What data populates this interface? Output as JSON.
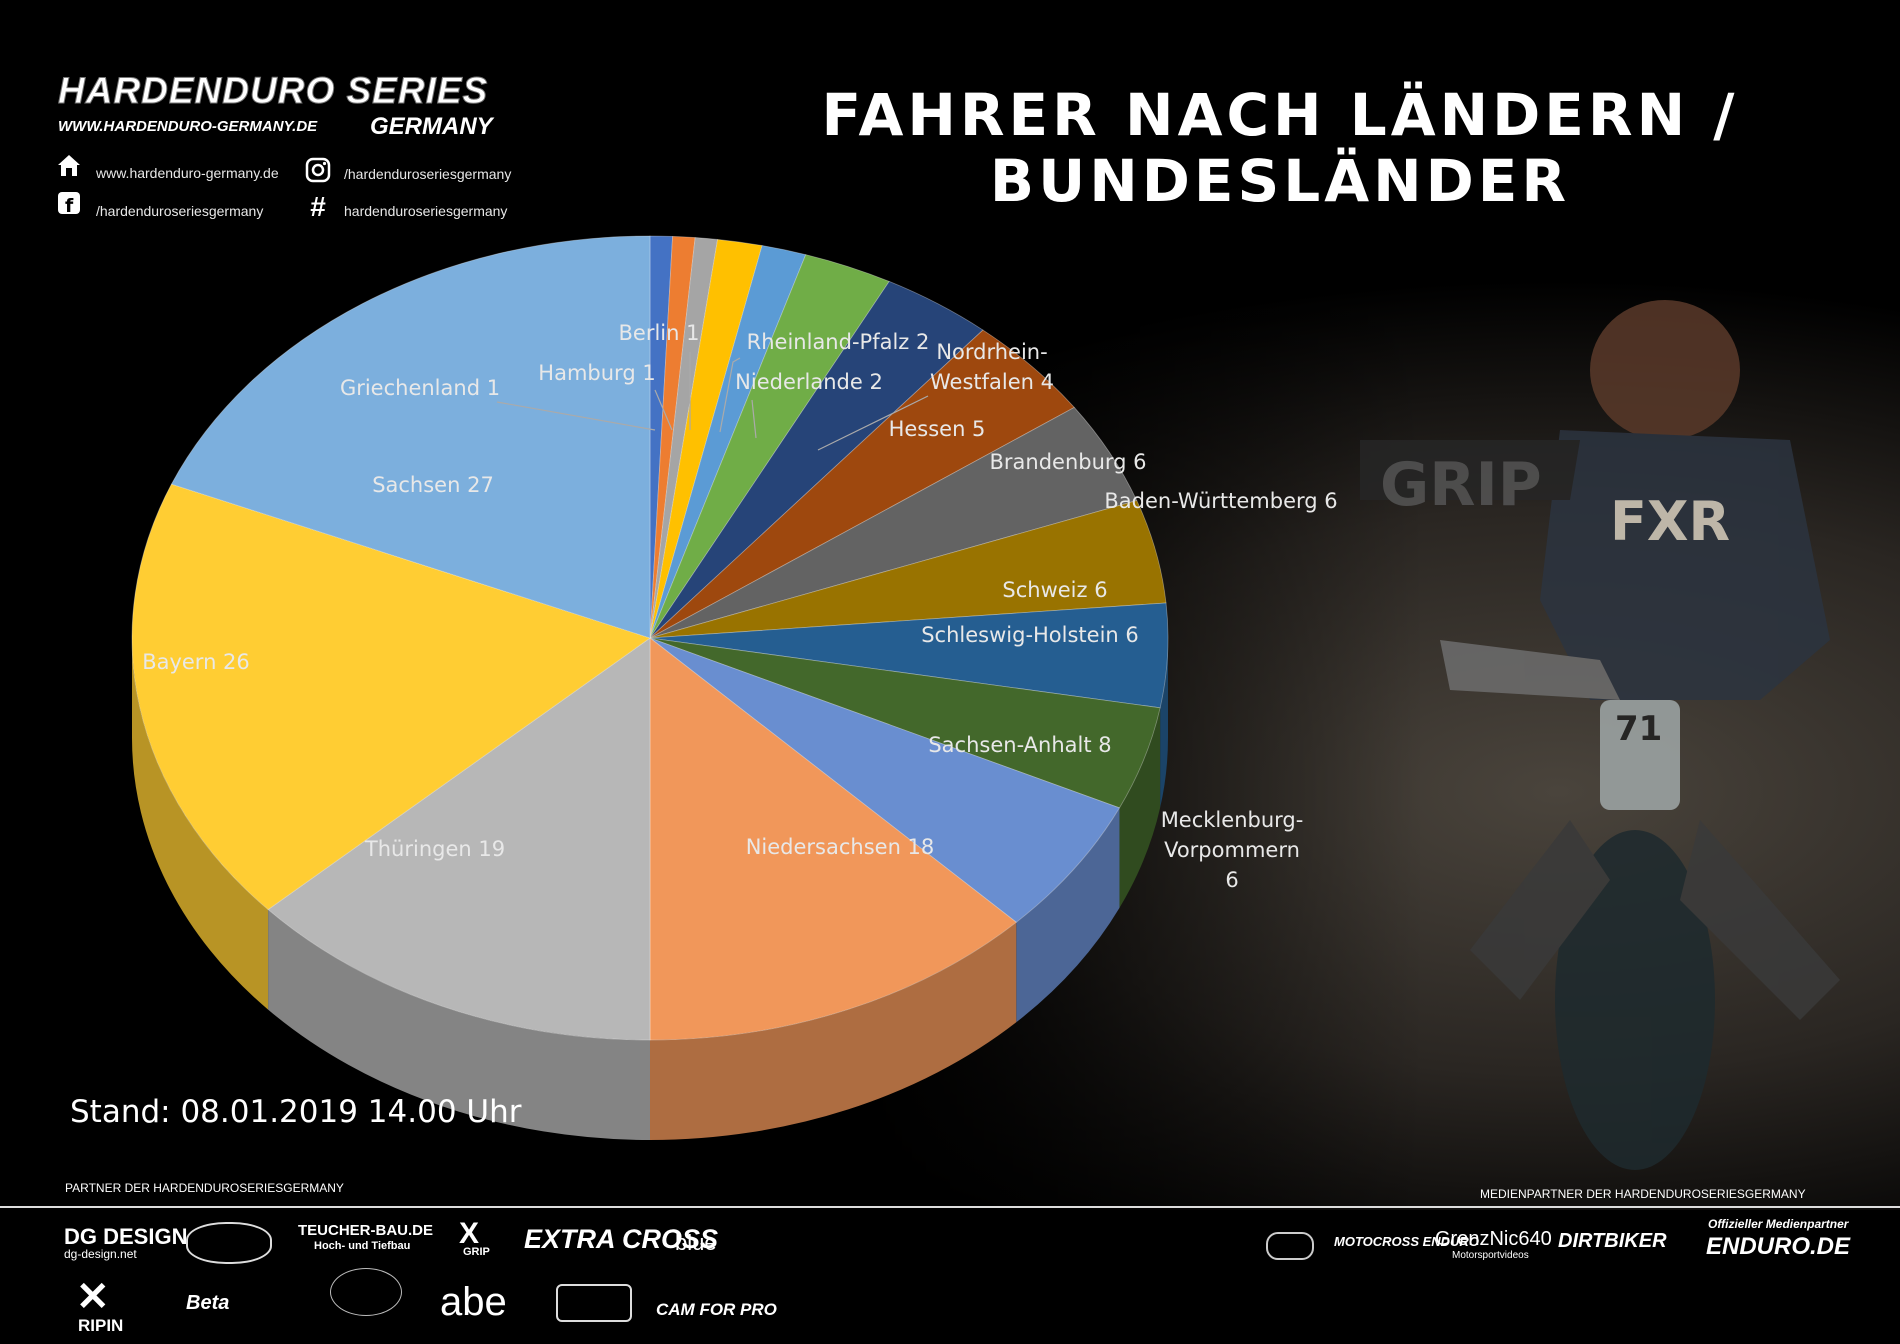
{
  "header": {
    "logo_title": "HARDENDURO SERIES",
    "logo_url": "WWW.HARDENDURO-GERMANY.DE",
    "logo_sub": "GERMANY",
    "social": {
      "website": "www.hardenduro-germany.de",
      "instagram": "/hardenduroseriesgermany",
      "facebook": "/hardenduroseriesgermany",
      "hashtag": "hardenduroseriesgermany"
    },
    "title_line1": "FAHRER NACH LÄNDERN /",
    "title_line2": "BUNDESLÄNDER"
  },
  "chart_data": {
    "type": "pie",
    "title": "FAHRER NACH LÄNDERN / BUNDESLÄNDER",
    "slices": [
      {
        "label": "Griechenland",
        "value": 1,
        "color": "#4472c4"
      },
      {
        "label": "Hamburg",
        "value": 1,
        "color": "#ed7d31"
      },
      {
        "label": "Berlin",
        "value": 1,
        "color": "#a5a5a5"
      },
      {
        "label": "Rheinland-Pfalz",
        "value": 2,
        "color": "#ffc000"
      },
      {
        "label": "Niederlande",
        "value": 2,
        "color": "#5b9bd5"
      },
      {
        "label": "Nordrhein-Westfalen",
        "value": 4,
        "color": "#70ad47"
      },
      {
        "label": "Hessen",
        "value": 5,
        "color": "#264478"
      },
      {
        "label": "Brandenburg",
        "value": 6,
        "color": "#9e480e"
      },
      {
        "label": "Baden-Württemberg",
        "value": 6,
        "color": "#636363"
      },
      {
        "label": "Schweiz",
        "value": 6,
        "color": "#997300"
      },
      {
        "label": "Schleswig-Holstein",
        "value": 6,
        "color": "#255e91"
      },
      {
        "label": "Mecklenburg-Vorpommern",
        "value": 6,
        "color": "#43682b"
      },
      {
        "label": "Sachsen-Anhalt",
        "value": 8,
        "color": "#698ed0"
      },
      {
        "label": "Niedersachsen",
        "value": 18,
        "color": "#f1975a"
      },
      {
        "label": "Thüringen",
        "value": 19,
        "color": "#b7b7b7"
      },
      {
        "label": "Bayern",
        "value": 26,
        "color": "#ffcd33"
      },
      {
        "label": "Sachsen",
        "value": 27,
        "color": "#7cafdd"
      }
    ],
    "label_texts": {
      "Griechenland": "Griechenland 1",
      "Hamburg": "Hamburg 1",
      "Berlin": "Berlin 1",
      "Rheinland-Pfalz": "Rheinland-Pfalz 2",
      "Niederlande": "Niederlande 2",
      "Nordrhein-Westfalen": [
        "Nordrhein-",
        "Westfalen 4"
      ],
      "Hessen": "Hessen 5",
      "Brandenburg": "Brandenburg 6",
      "Baden-Württemberg": "Baden-Württemberg 6",
      "Schweiz": "Schweiz 6",
      "Schleswig-Holstein": "Schleswig-Holstein 6",
      "Mecklenburg-Vorpommern": [
        "Mecklenburg-",
        "Vorpommern",
        "6"
      ],
      "Sachsen-Anhalt": "Sachsen-Anhalt 8",
      "Niedersachsen": "Niedersachsen 18",
      "Thüringen": "Thüringen 19",
      "Bayern": "Bayern 26",
      "Sachsen": "Sachsen 27"
    }
  },
  "footer": {
    "stand": "Stand: 08.01.2019 14.00 Uhr",
    "partner_label": "PARTNER DER HARDENDUROSERIESGERMANY",
    "media_label": "MEDIENPARTNER DER HARDENDUROSERIESGERMANY",
    "sponsors": [
      "DG DESIGN",
      "dg-design.net",
      "TEUCHER-BAU.DE",
      "Hoch- und Tiefbau",
      "GRIP",
      "EXTRA CROSS",
      "blue",
      "RIPIN",
      "Beta",
      "abe",
      "CAM FOR PRO"
    ],
    "media_partners": [
      "MOTOCROSS ENDURO",
      "GrenzNic640",
      "Motorsportvideos",
      "DIRTBIKER",
      "Offizieller Medienpartner",
      "ENDURO.DE"
    ]
  }
}
